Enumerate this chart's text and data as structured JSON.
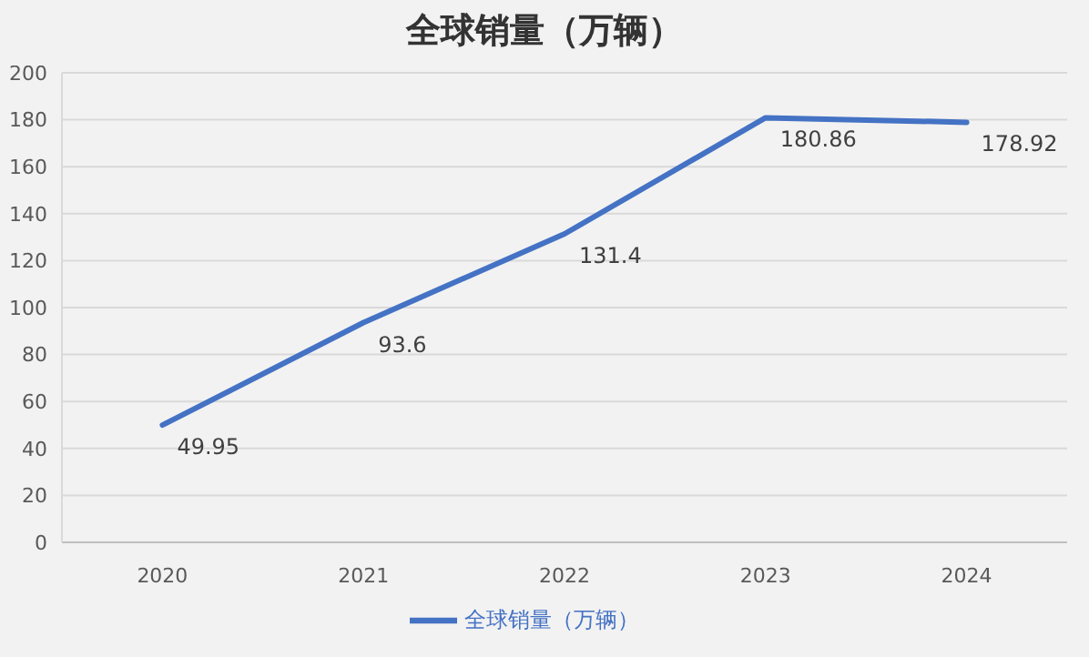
{
  "chart_data": {
    "type": "line",
    "title": "全球销量（万辆）",
    "categories": [
      "2020",
      "2021",
      "2022",
      "2023",
      "2024"
    ],
    "series": [
      {
        "name": "全球销量（万辆）",
        "color": "#4472c4",
        "values": [
          49.95,
          93.6,
          131.4,
          180.86,
          178.92
        ]
      }
    ],
    "ylim": [
      0,
      200
    ],
    "yticks": [
      0,
      20,
      40,
      60,
      80,
      100,
      120,
      140,
      160,
      180,
      200
    ],
    "grid": "y",
    "legend": "bottom",
    "data_labels": true,
    "marker": "none",
    "line_style": "solid"
  }
}
